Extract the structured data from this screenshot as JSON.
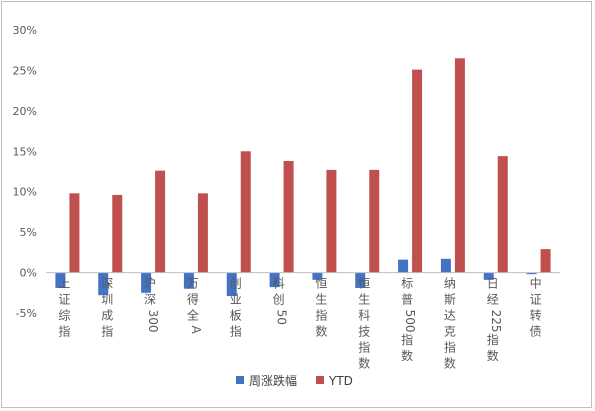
{
  "chart_data": {
    "type": "bar",
    "categories": [
      "上证综指",
      "深圳成指",
      "沪深300",
      "万得全A",
      "创业板指",
      "科创50",
      "恒生指数",
      "恒生科技指数",
      "标普500指数",
      "纳斯达克指数",
      "日经225指数",
      "中证转债"
    ],
    "series": [
      {
        "name": "周涨跌幅",
        "values": [
          -1.9,
          -2.8,
          -2.5,
          -2.0,
          -2.9,
          -1.8,
          -0.9,
          -1.9,
          1.6,
          1.7,
          -0.9,
          -0.2
        ],
        "color": "#4472c4"
      },
      {
        "name": "YTD",
        "values": [
          9.8,
          9.6,
          12.6,
          9.8,
          15.0,
          13.8,
          12.7,
          12.7,
          25.1,
          26.5,
          14.4,
          2.9
        ],
        "color": "#c0504d"
      }
    ],
    "yticks": [
      "30%",
      "25%",
      "20%",
      "15%",
      "10%",
      "5%",
      "0%",
      "-5%"
    ],
    "ylim": [
      -5,
      30
    ],
    "y_unit": "%",
    "grid": false,
    "legend_position": "bottom-center"
  }
}
